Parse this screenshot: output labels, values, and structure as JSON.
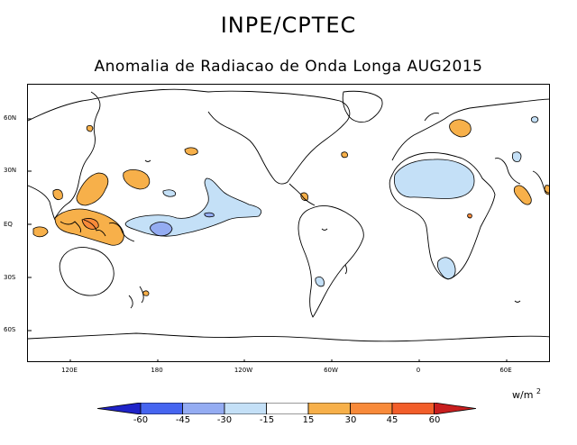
{
  "header": {
    "title": "INPE/CPTEC",
    "subtitle": "Anomalia de Radiacao de Onda Longa AUG2015"
  },
  "map": {
    "lat_labels": [
      "60N",
      "30N",
      "EQ",
      "30S",
      "60S"
    ],
    "lon_labels": [
      "120E",
      "180",
      "120W",
      "60W",
      "0",
      "60E"
    ]
  },
  "legend": {
    "unit": "w/m",
    "unit_power": "2",
    "levels": [
      "-60",
      "-45",
      "-30",
      "-15",
      "15",
      "30",
      "45",
      "60"
    ],
    "colors": {
      "below_-60": "#1f23c8",
      "-60_-45": "#4665f0",
      "-45_-30": "#94acf2",
      "-30_-15": "#c4e0f7",
      "-15_15": "#ffffff",
      "15_30": "#f7b04a",
      "30_45": "#f88a3a",
      "45_60": "#f25e2a",
      "above_60": "#c81e1e"
    }
  }
}
